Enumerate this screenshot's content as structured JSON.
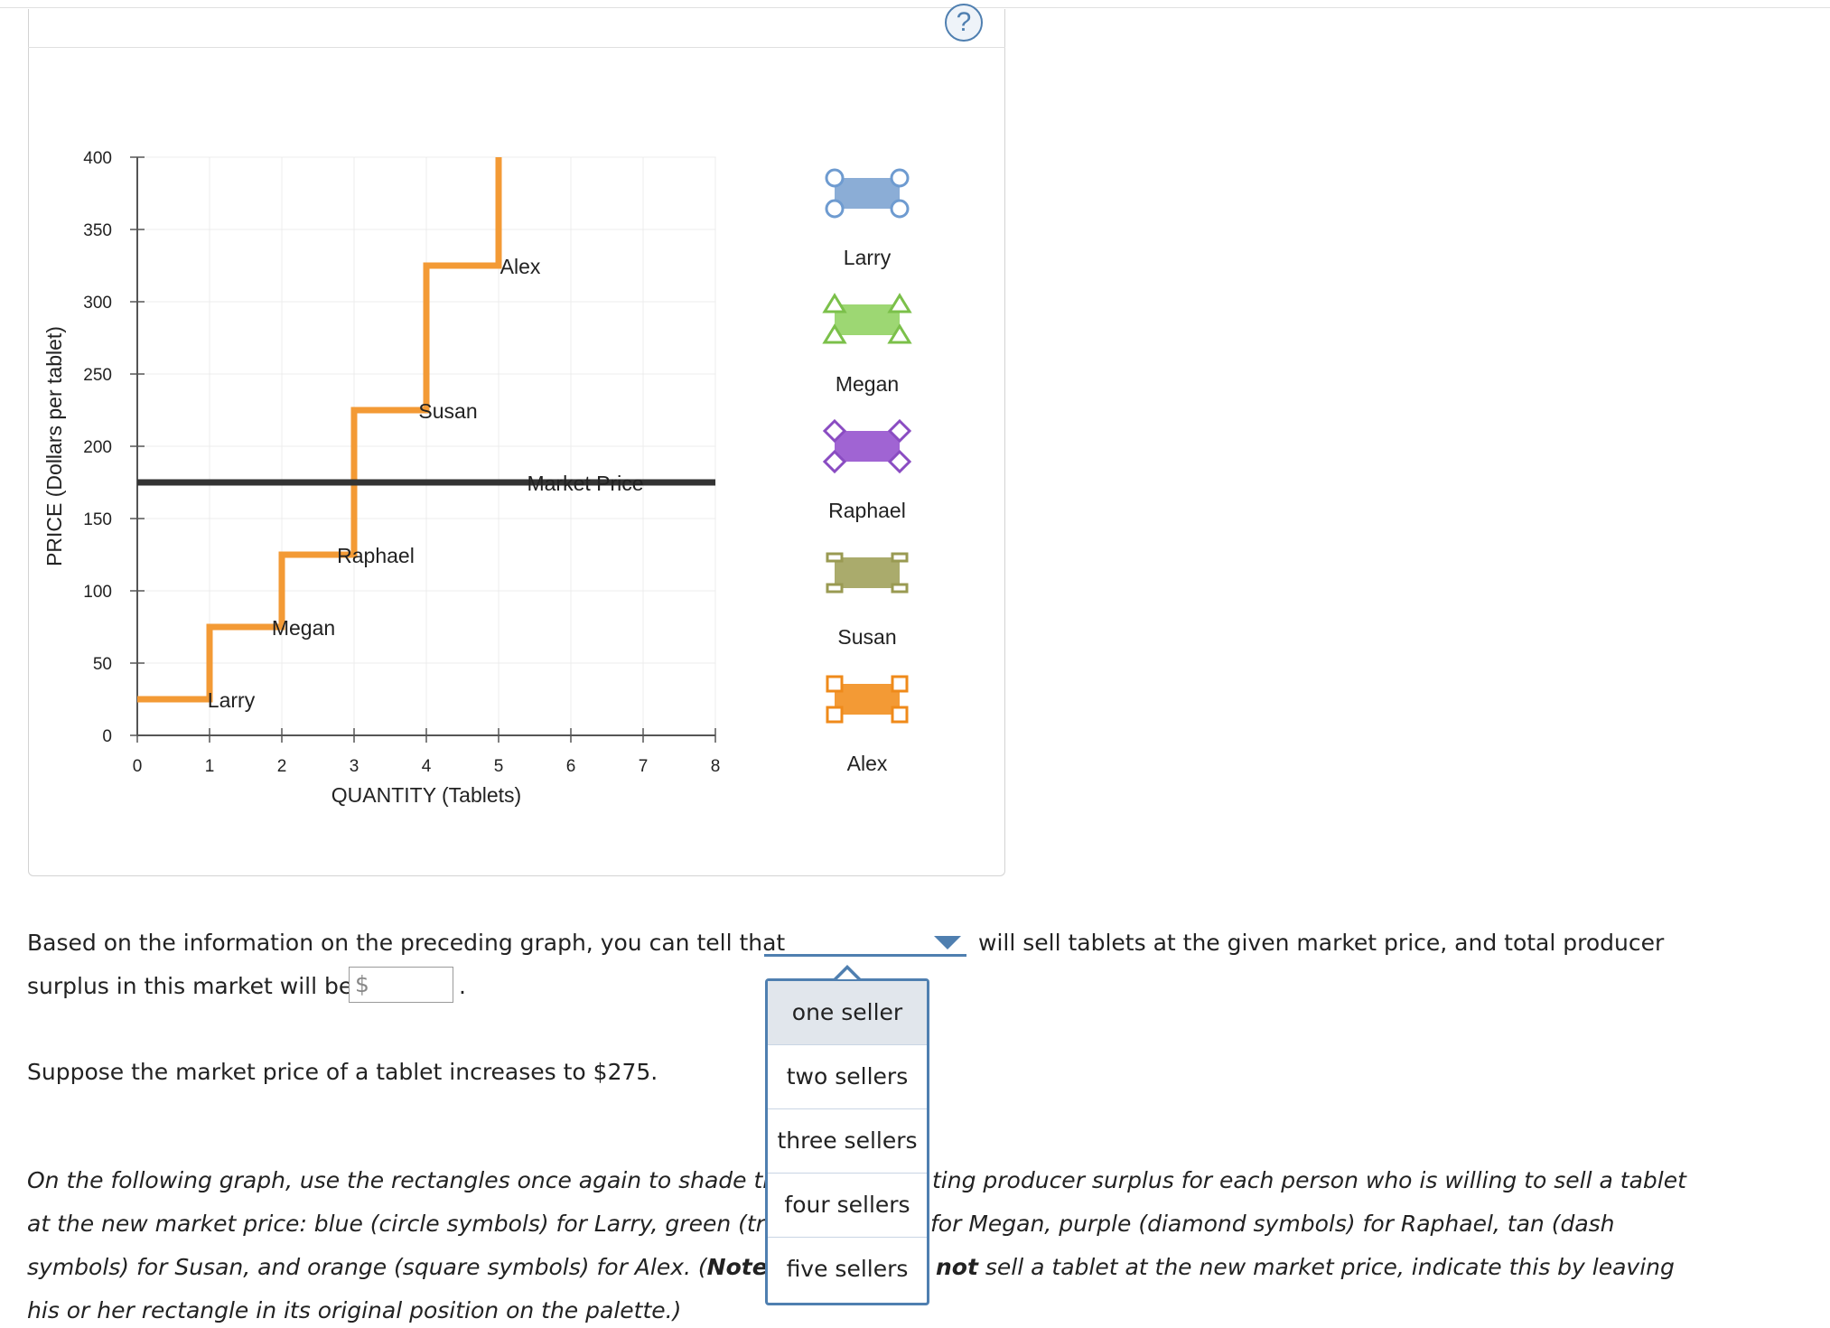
{
  "help": {
    "label": "?"
  },
  "chart_data": {
    "type": "line",
    "xlabel": "QUANTITY (Tablets)",
    "ylabel": "PRICE (Dollars per tablet)",
    "xlim": [
      0,
      8
    ],
    "ylim": [
      0,
      400
    ],
    "x_ticks": [
      0,
      1,
      2,
      3,
      4,
      5,
      6,
      7,
      8
    ],
    "y_ticks": [
      0,
      50,
      100,
      150,
      200,
      250,
      300,
      350,
      400
    ],
    "grid": true,
    "supply_curve": {
      "color": "#f39a35",
      "steps": [
        {
          "seller": "Larry",
          "x_from": 0,
          "x_to": 1,
          "price": 25
        },
        {
          "seller": "Megan",
          "x_from": 1,
          "x_to": 2,
          "price": 75
        },
        {
          "seller": "Raphael",
          "x_from": 2,
          "x_to": 3,
          "price": 125
        },
        {
          "seller": "Susan",
          "x_from": 3,
          "x_to": 4,
          "price": 225
        },
        {
          "seller": "Alex",
          "x_from": 4,
          "x_to": 5,
          "price": 325
        }
      ],
      "end_x": 5,
      "end_y": 400
    },
    "market_price": {
      "label": "Market Price",
      "value": 175,
      "color": "#333333"
    },
    "step_labels": [
      {
        "text": "Larry",
        "x": 1.3,
        "y": 25
      },
      {
        "text": "Megan",
        "x": 2.3,
        "y": 75
      },
      {
        "text": "Raphael",
        "x": 3.3,
        "y": 125
      },
      {
        "text": "Susan",
        "x": 4.3,
        "y": 225
      },
      {
        "text": "Alex",
        "x": 5.3,
        "y": 325
      },
      {
        "text": "Market Price",
        "x": 6.2,
        "y": 175
      }
    ],
    "palette": [
      {
        "name": "Larry",
        "fill": "#8badd6",
        "stroke": "#6e9bd0",
        "symbol": "circle"
      },
      {
        "name": "Megan",
        "fill": "#9dd773",
        "stroke": "#7bc04a",
        "symbol": "triangle"
      },
      {
        "name": "Raphael",
        "fill": "#a064d3",
        "stroke": "#8a4cc2",
        "symbol": "diamond"
      },
      {
        "name": "Susan",
        "fill": "#aaab6c",
        "stroke": "#999a52",
        "symbol": "dash"
      },
      {
        "name": "Alex",
        "fill": "#f39a35",
        "stroke": "#ef8a1a",
        "symbol": "square"
      }
    ]
  },
  "question": {
    "line1_before": "Based on the information on the preceding graph, you can tell that",
    "line1_after": "will sell tablets at the given market price, and total producer",
    "line2_before": "surplus in this market will be",
    "currency": "$",
    "line2_after": ".",
    "line3": "Suppose the market price of a tablet increases to $275."
  },
  "dropdown": {
    "options": [
      "one seller",
      "two sellers",
      "three sellers",
      "four sellers",
      "five sellers"
    ],
    "highlighted": "one seller"
  },
  "instructions": {
    "l1_left": "On the following graph, use the rectangles once again to shade the",
    "l1_right": "ting producer surplus for each person who is willing to sell a tablet",
    "l2_left": "at the new market price: blue (circle symbols) for Larry, green (tria",
    "l2_right": "for Megan, purple (diamond symbols) for Raphael, tan (dash",
    "l3_left_a": "symbols) for Susan, and orange (square symbols) for Alex. (",
    "l3_left_note": "Note:",
    "l3_right_not": "not",
    "l3_right_b": " sell a tablet at the new market price, indicate this by leaving",
    "l4": "his or her rectangle in its original position on the palette.)"
  }
}
